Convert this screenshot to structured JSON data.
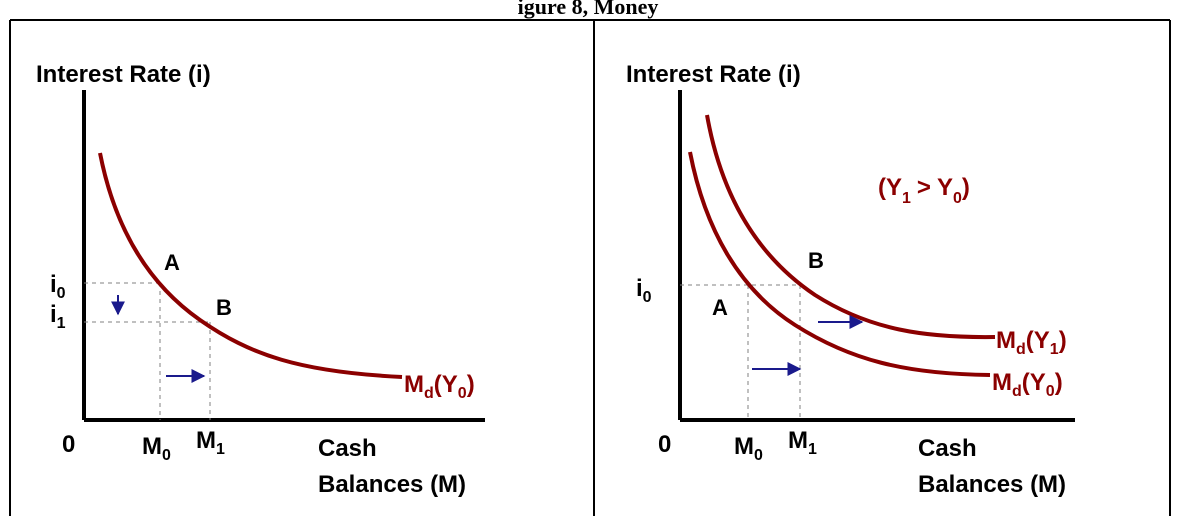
{
  "title": "igure 8, Money",
  "panels": [
    {
      "y_axis_label": "Interest Rate (i)",
      "origin": "0",
      "x_axis_label_line1": "Cash",
      "x_axis_label_line2": "Balances (M)",
      "ticks": [
        {
          "base": "i",
          "sub": "0"
        },
        {
          "base": "i",
          "sub": "1"
        },
        {
          "base": "M",
          "sub": "0"
        },
        {
          "base": "M",
          "sub": "1"
        }
      ],
      "points": [
        "A",
        "B"
      ],
      "curves": [
        {
          "base": "M",
          "sub": "d",
          "arg_base": "Y",
          "arg_sub": "0"
        }
      ]
    },
    {
      "y_axis_label": "Interest Rate (i)",
      "origin": "0",
      "x_axis_label_line1": "Cash",
      "x_axis_label_line2": "Balances (M)",
      "ticks": [
        {
          "base": "i",
          "sub": "0"
        },
        {
          "base": "M",
          "sub": "0"
        },
        {
          "base": "M",
          "sub": "1"
        }
      ],
      "points": [
        "A",
        "B"
      ],
      "curves": [
        {
          "base": "M",
          "sub": "d",
          "arg_base": "Y",
          "arg_sub": "1"
        },
        {
          "base": "M",
          "sub": "d",
          "arg_base": "Y",
          "arg_sub": "0"
        }
      ],
      "condition": {
        "open": "(",
        "a_base": "Y",
        "a_sub": "1",
        "op": ">",
        "b_base": "Y",
        "b_sub": "0",
        "close": ")"
      }
    }
  ],
  "colors": {
    "curve": "#8b0000",
    "arrow": "#1a1a8c",
    "axis": "#000000",
    "guide": "#808080"
  },
  "icons": [
    "down-arrow-icon",
    "right-arrow-icon"
  ]
}
